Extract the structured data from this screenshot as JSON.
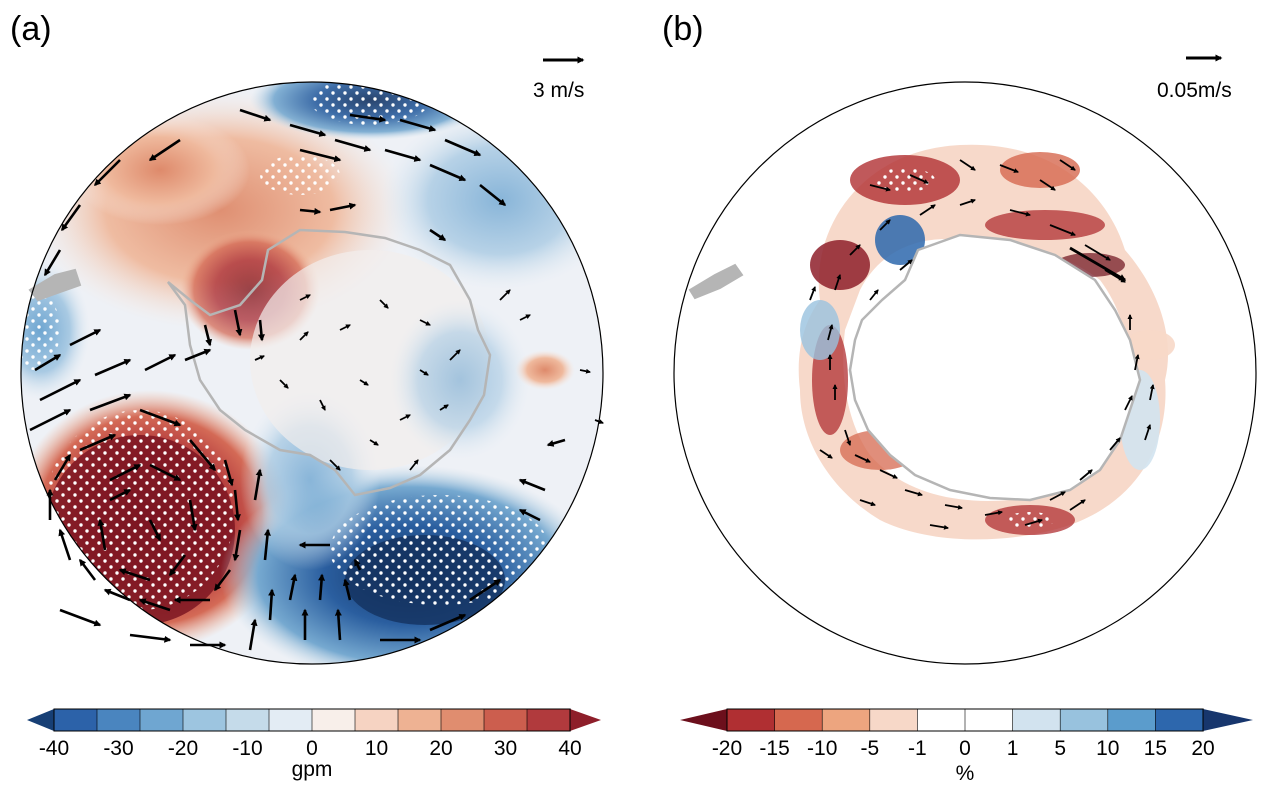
{
  "panels": [
    {
      "id": "a",
      "label": "(a)",
      "reference_vector_label": "3 m/s",
      "colorbar": {
        "ticks": [
          "-40",
          "-30",
          "-20",
          "-10",
          "0",
          "10",
          "20",
          "30",
          "40"
        ],
        "unit": "gpm",
        "colors": [
          "#173f75",
          "#2c62a9",
          "#4a85bf",
          "#6fa6d1",
          "#9dc5e0",
          "#c5dbea",
          "#e3ecf4",
          "#f8efea",
          "#f6d3c2",
          "#eeb293",
          "#e08d6f",
          "#cc5e4e",
          "#b13a3d",
          "#8e1e2a"
        ]
      }
    },
    {
      "id": "b",
      "label": "(b)",
      "reference_vector_label": "0.05m/s",
      "colorbar": {
        "ticks": [
          "-20",
          "-15",
          "-10",
          "-5",
          "-1",
          "0",
          "1",
          "5",
          "10",
          "15",
          "20"
        ],
        "unit": "%",
        "colors": [
          "#6c0f1c",
          "#b02f32",
          "#d6684f",
          "#eda57f",
          "#f7d8c8",
          "#ffffff",
          "#ffffff",
          "#d2e3ef",
          "#98c2de",
          "#5b9ccc",
          "#2d67ad",
          "#17366d"
        ]
      }
    }
  ]
}
